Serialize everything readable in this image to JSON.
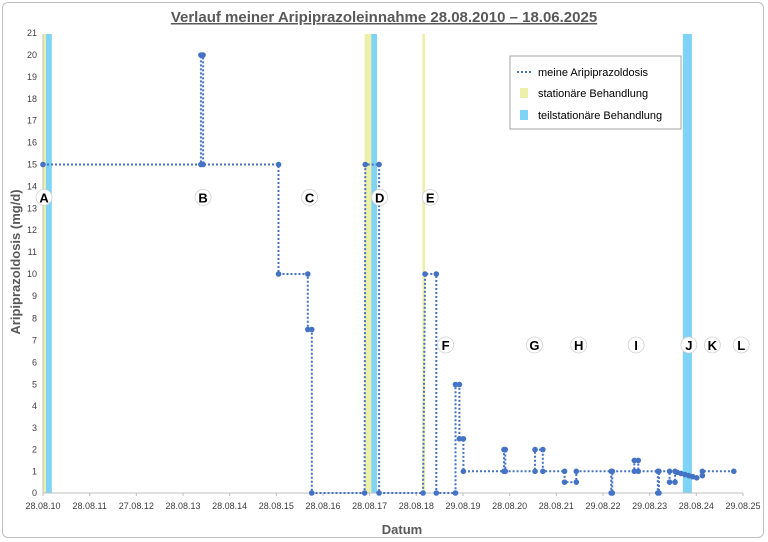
{
  "chart_data": {
    "type": "line",
    "title": "Verlauf meiner Aripiprazoleinnahme 28.08.2010 – 18.06.2025",
    "xlabel": "Datum",
    "ylabel": "Aripiprazoldosis (mg/d)",
    "x_tick_labels": [
      "28.08.10",
      "28.08.11",
      "27.08.12",
      "28.08.13",
      "28.08.14",
      "28.08.15",
      "28.08.16",
      "28.08.17",
      "28.08.18",
      "29.08.19",
      "28.08.20",
      "28.08.21",
      "29.08.22",
      "29.08.23",
      "28.08.24",
      "29.08.25"
    ],
    "xlim": [
      "2010-08-28",
      "2025-08-29"
    ],
    "y_ticks": [
      "0",
      "1",
      "2",
      "3",
      "4",
      "5",
      "7",
      "10",
      "15",
      "20",
      "21"
    ],
    "grid": false,
    "legend_position": "top-right",
    "legend": {
      "dose": "meine Aripiprazoldosis",
      "inpatient": "stationäre Behandlung",
      "daycare": "teilstationäre Behandlung"
    },
    "colors": {
      "dose": "#4472c4",
      "inpatient": "#ecf0a8",
      "daycare": "#7fd3f5"
    },
    "inpatient_periods": [
      [
        "2010-08-28",
        "2010-09-20"
      ],
      [
        "2017-07-20",
        "2017-09-10"
      ],
      [
        "2018-10-15",
        "2018-11-05"
      ]
    ],
    "daycare_periods": [
      [
        "2010-09-20",
        "2010-11-05"
      ],
      [
        "2017-09-10",
        "2017-10-25"
      ],
      [
        "2024-05-15",
        "2024-07-25"
      ]
    ],
    "series": [
      {
        "name": "meine Aripiprazoldosis",
        "points": [
          [
            "2010-08-28",
            15
          ],
          [
            "2014-01-15",
            15
          ],
          [
            "2014-01-15",
            20
          ],
          [
            "2014-02-01",
            20
          ],
          [
            "2014-02-01",
            15
          ],
          [
            "2015-09-15",
            15
          ],
          [
            "2015-09-15",
            10
          ],
          [
            "2016-05-01",
            10
          ],
          [
            "2016-05-01",
            7.5
          ],
          [
            "2016-06-01",
            7.5
          ],
          [
            "2016-06-01",
            0
          ],
          [
            "2017-07-20",
            0
          ],
          [
            "2017-07-25",
            15
          ],
          [
            "2017-11-10",
            15
          ],
          [
            "2017-11-10",
            0
          ],
          [
            "2018-10-20",
            0
          ],
          [
            "2018-11-05",
            10
          ],
          [
            "2019-02-01",
            10
          ],
          [
            "2019-02-01",
            0
          ],
          [
            "2019-07-01",
            0
          ],
          [
            "2019-07-01",
            5
          ],
          [
            "2019-08-01",
            5
          ],
          [
            "2019-08-01",
            2.5
          ],
          [
            "2019-09-01",
            2.5
          ],
          [
            "2019-09-01",
            1
          ],
          [
            "2020-07-15",
            1
          ],
          [
            "2020-07-15",
            2
          ],
          [
            "2020-07-25",
            2
          ],
          [
            "2020-07-25",
            1
          ],
          [
            "2021-03-15",
            1
          ],
          [
            "2021-03-15",
            2
          ],
          [
            "2021-05-15",
            2
          ],
          [
            "2021-05-15",
            1
          ],
          [
            "2021-11-01",
            1
          ],
          [
            "2021-11-01",
            0.5
          ],
          [
            "2022-02-01",
            0.5
          ],
          [
            "2022-02-01",
            1
          ],
          [
            "2022-11-01",
            1
          ],
          [
            "2022-11-01",
            0
          ],
          [
            "2022-11-10",
            0
          ],
          [
            "2022-11-10",
            1
          ],
          [
            "2023-05-01",
            1
          ],
          [
            "2023-05-01",
            1.5
          ],
          [
            "2023-06-01",
            1.5
          ],
          [
            "2023-06-01",
            1
          ],
          [
            "2023-11-01",
            1
          ],
          [
            "2023-11-01",
            0
          ],
          [
            "2023-11-10",
            0
          ],
          [
            "2023-11-10",
            1
          ],
          [
            "2024-02-01",
            1
          ],
          [
            "2024-02-01",
            0.5
          ],
          [
            "2024-03-15",
            0.5
          ],
          [
            "2024-03-15",
            1
          ],
          [
            "2024-04-01",
            0.95
          ],
          [
            "2024-05-01",
            0.9
          ],
          [
            "2024-06-01",
            0.85
          ],
          [
            "2024-07-01",
            0.8
          ],
          [
            "2024-08-01",
            0.75
          ],
          [
            "2024-09-01",
            0.7
          ],
          [
            "2024-10-15",
            0.8
          ],
          [
            "2024-10-15",
            1
          ],
          [
            "2025-06-18",
            1
          ]
        ]
      }
    ],
    "annotations": [
      {
        "label": "A",
        "x": "2010-09-05",
        "y": 13.5
      },
      {
        "label": "B",
        "x": "2014-02-01",
        "y": 13.5
      },
      {
        "label": "C",
        "x": "2016-05-15",
        "y": 13.5
      },
      {
        "label": "D",
        "x": "2017-11-15",
        "y": 13.5
      },
      {
        "label": "E",
        "x": "2018-12-15",
        "y": 13.5
      },
      {
        "label": "F",
        "x": "2019-04-15",
        "y": 6.8
      },
      {
        "label": "G",
        "x": "2021-03-10",
        "y": 6.8
      },
      {
        "label": "H",
        "x": "2022-02-20",
        "y": 6.8
      },
      {
        "label": "I",
        "x": "2023-05-15",
        "y": 6.8
      },
      {
        "label": "J",
        "x": "2024-07-01",
        "y": 6.8
      },
      {
        "label": "K",
        "x": "2025-01-01",
        "y": 6.8
      },
      {
        "label": "L",
        "x": "2025-08-15",
        "y": 6.8
      }
    ]
  }
}
